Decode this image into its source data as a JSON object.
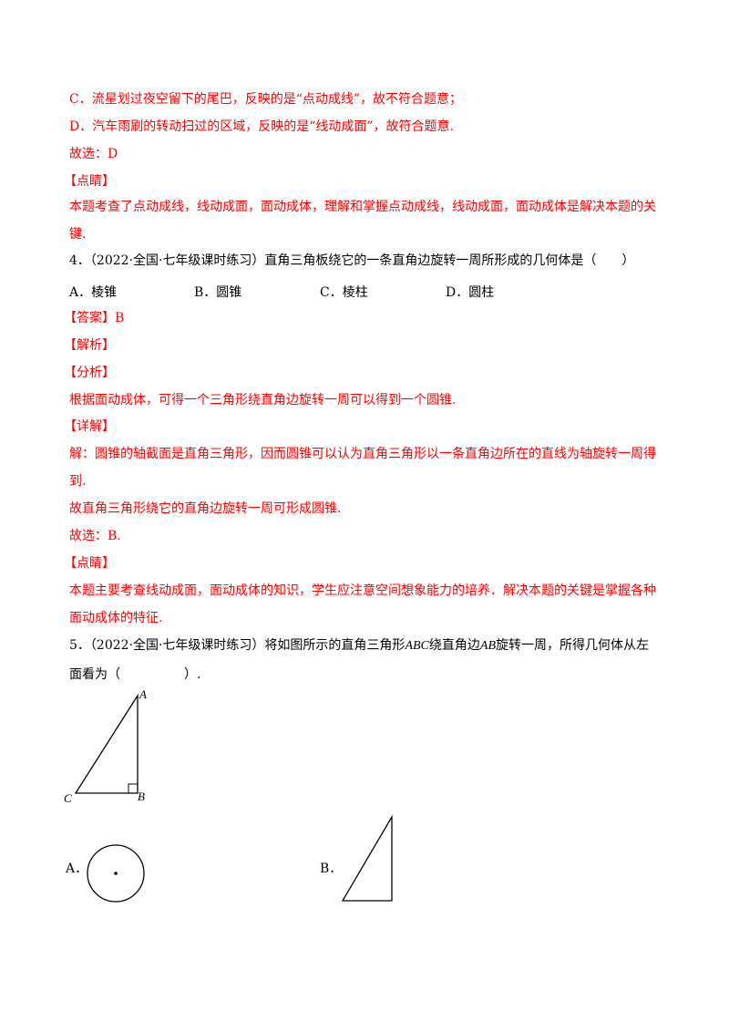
{
  "colors": {
    "answer": "#ff0000",
    "text": "#000000"
  },
  "lines": {
    "c": "C．流星划过夜空留下的尾巴，反映的是“点动成线”，故不符合题意；",
    "d": "D．汽车雨刷的转动扫过的区域，反映的是“线动成面”，故符合题意.",
    "choice3": "故选：D",
    "tip3_head": "【点睛】",
    "tip3_a": "本题考查了点动成线，线动成面，面动成体，理解和掌握点动成线，线动成面，面动成体是解决本题的关",
    "tip3_b": "键.",
    "q4": "4．（2022·全国·七年级课时练习）直角三角板绕它的一条直角边旋转一周所形成的几何体是（　　）",
    "q4_opts": [
      "A．棱锥",
      "B．圆锥",
      "C．棱柱",
      "D．圆柱"
    ],
    "ans4": "【答案】B",
    "jx": "【解析】",
    "fx": "【分析】",
    "fx_t": "根据面动成体，可得一个三角形绕直角边旋转一周可以得到一个圆锥.",
    "xj": "【详解】",
    "xj_a": "解：圆锥的轴截面是直角三角形，因而圆锥可以认为直角三角形以一条直角边所在的直线为轴旋转一周得",
    "xj_b": "到.",
    "xj_c": "故直角三角形绕它的直角边旋转一周可形成圆锥.",
    "choice4": "故选：B.",
    "tip4_head": "【点睛】",
    "tip4_a": "本题主要考查线动成面，面动成体的知识，学生应注意空间想象能力的培养．解决本题的关键是掌握各种",
    "tip4_b": "面动成体的特征.",
    "q5_a1": "5．（2022·全国·七年级课时练习）将如图所示的直角三角形",
    "q5_abc": "ABC",
    "q5_a2": "绕直角边",
    "q5_ab": "AB",
    "q5_a3": "旋转一周，所得几何体从左",
    "q5_b": "面看为（　　　　　）.",
    "fig_labels": {
      "a": "A",
      "b": "B",
      "c": "C"
    },
    "q5_opts": [
      "A．",
      "B．"
    ]
  }
}
